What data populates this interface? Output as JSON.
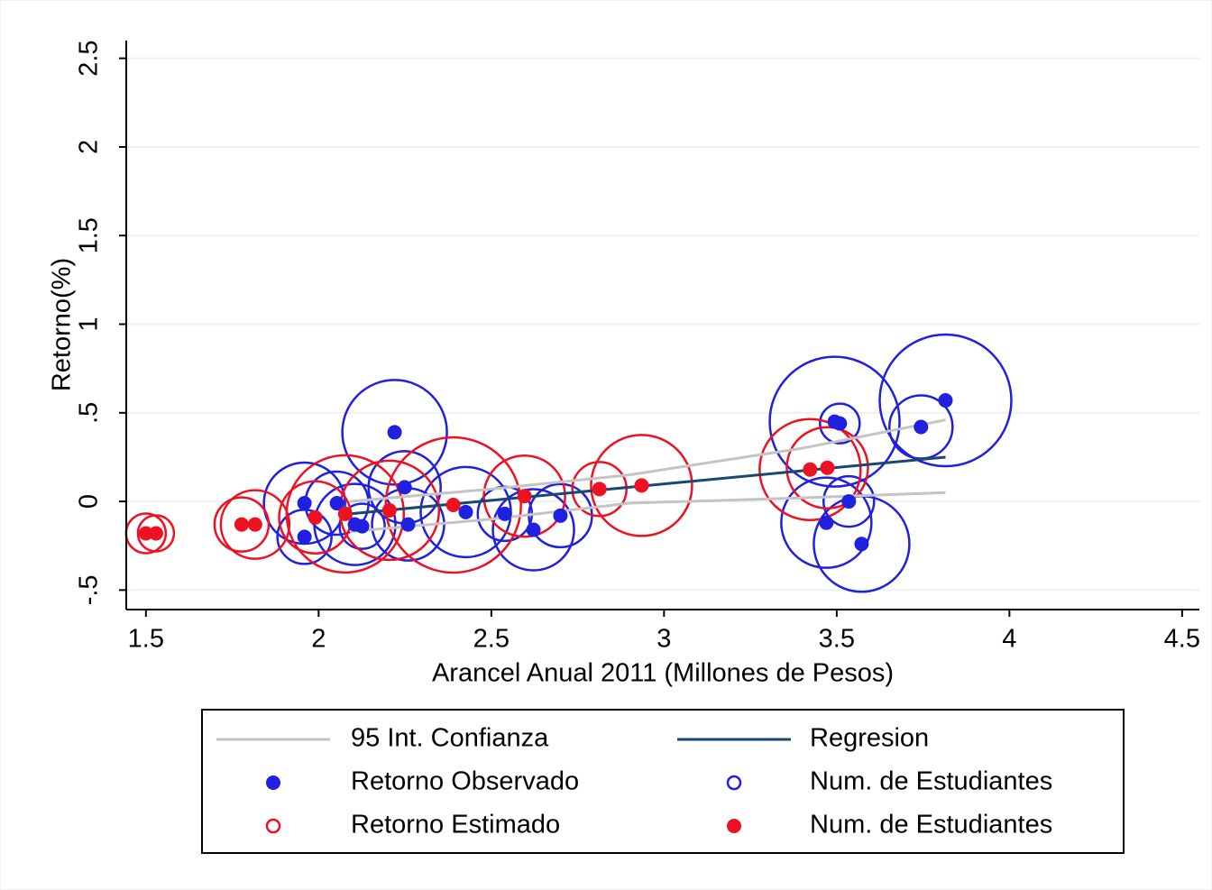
{
  "chart_data": {
    "type": "scatter",
    "xlabel": "Arancel Anual 2011 (Millones de Pesos)",
    "ylabel": "Retorno(%)",
    "xlim": [
      1.443,
      4.55
    ],
    "ylim": [
      -0.61,
      2.6
    ],
    "xticks": [
      1.5,
      2,
      2.5,
      3,
      3.5,
      4,
      4.5
    ],
    "yticks": [
      {
        "value": -0.5,
        "label": "-.5"
      },
      0,
      {
        "value": 0.5,
        "label": ".5"
      },
      1,
      1.5,
      2,
      2.5
    ],
    "grid": true,
    "series": [
      {
        "name": "95 Int. Confianza",
        "color": "#c4c4c4",
        "marker": "band",
        "x": [
          2.09,
          2.5,
          2.9,
          3.4,
          3.815
        ],
        "upper": [
          0.0,
          0.07,
          0.15,
          0.3,
          0.46
        ],
        "lower": [
          -0.17,
          -0.1,
          -0.01,
          0.02,
          0.05
        ]
      },
      {
        "name": "Regresion",
        "color": "#1a476f",
        "marker": "line",
        "x": [
          2.09,
          3.815
        ],
        "values": [
          -0.07,
          0.25
        ]
      },
      {
        "name": "Retorno Observado",
        "color": "#2020e0",
        "marker": "dot",
        "x": [
          1.959,
          1.959,
          2.053,
          2.105,
          2.126,
          2.22,
          2.249,
          2.259,
          2.426,
          2.539,
          2.622,
          2.7,
          3.494,
          3.509,
          3.47,
          3.535,
          3.572,
          3.744,
          3.815
        ],
        "values": [
          -0.01,
          -0.2,
          -0.01,
          -0.13,
          -0.14,
          0.39,
          0.08,
          -0.13,
          -0.06,
          -0.07,
          -0.16,
          -0.08,
          0.45,
          0.44,
          -0.12,
          0.0,
          -0.24,
          0.42,
          0.57
        ]
      },
      {
        "name": "Num. de Estudiantes",
        "color": "#2020e0",
        "marker": "ring",
        "of": 2,
        "sizes": [
          45,
          30,
          35,
          45,
          25,
          58,
          40,
          40,
          50,
          30,
          45,
          35,
          72,
          22,
          50,
          28,
          53,
          35,
          73
        ]
      },
      {
        "name": "Retorno Estimado",
        "color": "#ee1122",
        "marker": "ring",
        "of": 5,
        "sizes": [
          22,
          20,
          30,
          38,
          40,
          65,
          55,
          75,
          45,
          30,
          56,
          56,
          45
        ]
      },
      {
        "name": "Num. de Estudiantes",
        "color": "#ee1122",
        "marker": "dot",
        "x": [
          1.5,
          1.529,
          1.777,
          1.816,
          1.99,
          2.077,
          2.205,
          2.39,
          2.596,
          2.813,
          2.935,
          3.423,
          3.473
        ],
        "values": [
          -0.18,
          -0.18,
          -0.13,
          -0.13,
          -0.09,
          -0.07,
          -0.05,
          -0.02,
          0.03,
          0.07,
          0.09,
          0.18,
          0.19
        ]
      }
    ]
  }
}
